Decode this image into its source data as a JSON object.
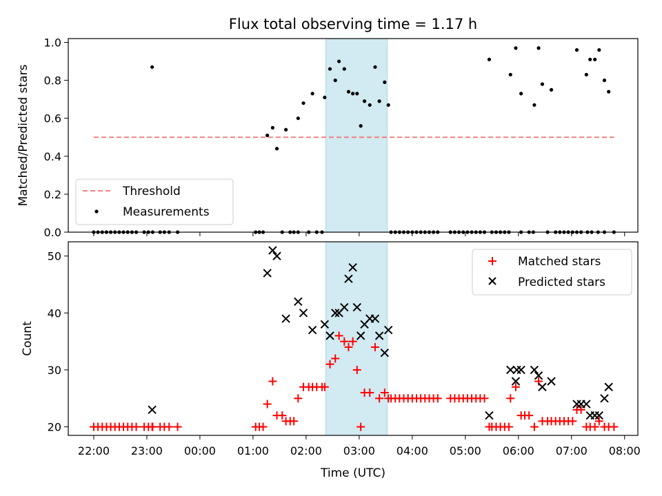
{
  "figure": {
    "title": "Flux total observing time = 1.17 h",
    "xlabel": "Time (UTC)",
    "xticks": [
      {
        "t": -2,
        "label": "22:00"
      },
      {
        "t": -1,
        "label": "23:00"
      },
      {
        "t": 0,
        "label": "00:00"
      },
      {
        "t": 1,
        "label": "01:00"
      },
      {
        "t": 2,
        "label": "02:00"
      },
      {
        "t": 3,
        "label": "03:00"
      },
      {
        "t": 4,
        "label": "04:00"
      },
      {
        "t": 5,
        "label": "05:00"
      },
      {
        "t": 6,
        "label": "06:00"
      },
      {
        "t": 7,
        "label": "07:00"
      },
      {
        "t": 8,
        "label": "08:00"
      }
    ],
    "xlim": [
      -2.48,
      8.25
    ],
    "highlight_span": [
      2.37,
      3.53
    ],
    "colors": {
      "threshold": "#f08080",
      "measurement": "#000000",
      "matched": "#ff0000",
      "predicted": "#000000",
      "span": "#add8e6"
    }
  },
  "chart_data": [
    {
      "type": "scatter",
      "ylabel": "Matched/Predicted stars",
      "ylim": [
        0,
        1.02
      ],
      "yticks": [
        {
          "v": 0,
          "label": "0.0"
        },
        {
          "v": 0.2,
          "label": "0.2"
        },
        {
          "v": 0.4,
          "label": "0.4"
        },
        {
          "v": 0.6,
          "label": "0.6"
        },
        {
          "v": 0.8,
          "label": "0.8"
        },
        {
          "v": 1.0,
          "label": "1.0"
        }
      ],
      "legend_position": "lower-left",
      "threshold": {
        "name": "Threshold",
        "value": 0.5,
        "x_range": [
          -2.0,
          7.8
        ]
      },
      "measurements": {
        "name": "Measurements",
        "points": [
          [
            -2.0,
            0
          ],
          [
            -1.92,
            0
          ],
          [
            -1.84,
            0
          ],
          [
            -1.76,
            0
          ],
          [
            -1.68,
            0
          ],
          [
            -1.6,
            0
          ],
          [
            -1.52,
            0
          ],
          [
            -1.44,
            0
          ],
          [
            -1.36,
            0
          ],
          [
            -1.28,
            0
          ],
          [
            -1.2,
            0
          ],
          [
            -1.05,
            0
          ],
          [
            -0.97,
            0
          ],
          [
            -0.89,
            0
          ],
          [
            -0.75,
            0
          ],
          [
            -0.67,
            0
          ],
          [
            -0.58,
            0
          ],
          [
            -0.42,
            0
          ],
          [
            -0.9,
            0.87
          ],
          [
            1.05,
            0
          ],
          [
            1.12,
            0
          ],
          [
            1.19,
            0
          ],
          [
            1.55,
            0
          ],
          [
            1.7,
            0
          ],
          [
            1.77,
            0
          ],
          [
            1.85,
            0
          ],
          [
            2.05,
            0
          ],
          [
            2.2,
            0
          ],
          [
            2.3,
            0
          ],
          [
            1.27,
            0.51
          ],
          [
            1.37,
            0.55
          ],
          [
            1.45,
            0.44
          ],
          [
            1.62,
            0.54
          ],
          [
            1.85,
            0.6
          ],
          [
            1.95,
            0.68
          ],
          [
            2.12,
            0.73
          ],
          [
            2.35,
            0.71
          ],
          [
            2.45,
            0.86
          ],
          [
            2.55,
            0.8
          ],
          [
            2.62,
            0.9
          ],
          [
            2.72,
            0.86
          ],
          [
            2.8,
            0.74
          ],
          [
            2.88,
            0.73
          ],
          [
            2.96,
            0.73
          ],
          [
            3.03,
            0.56
          ],
          [
            3.1,
            0.69
          ],
          [
            3.2,
            0.67
          ],
          [
            3.3,
            0.87
          ],
          [
            3.38,
            0.69
          ],
          [
            3.48,
            0.79
          ],
          [
            3.55,
            0.67
          ],
          [
            3.6,
            0
          ],
          [
            3.68,
            0
          ],
          [
            3.76,
            0
          ],
          [
            3.84,
            0
          ],
          [
            3.92,
            0
          ],
          [
            4.0,
            0
          ],
          [
            4.08,
            0
          ],
          [
            4.16,
            0
          ],
          [
            4.24,
            0
          ],
          [
            4.32,
            0
          ],
          [
            4.4,
            0
          ],
          [
            4.48,
            0
          ],
          [
            4.72,
            0
          ],
          [
            4.8,
            0
          ],
          [
            4.88,
            0
          ],
          [
            4.96,
            0
          ],
          [
            5.04,
            0
          ],
          [
            5.12,
            0
          ],
          [
            5.2,
            0
          ],
          [
            5.28,
            0
          ],
          [
            5.36,
            0
          ],
          [
            5.5,
            0
          ],
          [
            5.58,
            0
          ],
          [
            5.66,
            0
          ],
          [
            5.74,
            0
          ],
          [
            5.82,
            0
          ],
          [
            5.45,
            0.91
          ],
          [
            5.85,
            0.83
          ],
          [
            5.95,
            0.97
          ],
          [
            6.05,
            0.73
          ],
          [
            6.3,
            0.67
          ],
          [
            6.38,
            0.97
          ],
          [
            6.45,
            0.78
          ],
          [
            6.62,
            0.75
          ],
          [
            6.05,
            0
          ],
          [
            6.2,
            0
          ],
          [
            6.28,
            0
          ],
          [
            6.55,
            0
          ],
          [
            6.7,
            0
          ],
          [
            6.78,
            0
          ],
          [
            6.86,
            0
          ],
          [
            6.94,
            0
          ],
          [
            7.02,
            0
          ],
          [
            7.1,
            0
          ],
          [
            7.18,
            0
          ],
          [
            7.3,
            0
          ],
          [
            7.38,
            0
          ],
          [
            7.5,
            0
          ],
          [
            7.62,
            0
          ],
          [
            7.8,
            0
          ],
          [
            7.1,
            0.96
          ],
          [
            7.28,
            0.83
          ],
          [
            7.35,
            0.91
          ],
          [
            7.44,
            0.91
          ],
          [
            7.52,
            0.96
          ],
          [
            7.62,
            0.8
          ],
          [
            7.7,
            0.74
          ]
        ]
      }
    },
    {
      "type": "scatter",
      "ylabel": "Count",
      "ylim": [
        18.5,
        52.5
      ],
      "yticks": [
        {
          "v": 20,
          "label": "20"
        },
        {
          "v": 30,
          "label": "30"
        },
        {
          "v": 40,
          "label": "40"
        },
        {
          "v": 50,
          "label": "50"
        }
      ],
      "legend_position": "upper-right",
      "series": [
        {
          "name": "Matched stars",
          "marker": "plus",
          "points": [
            [
              -2.0,
              20
            ],
            [
              -1.92,
              20
            ],
            [
              -1.84,
              20
            ],
            [
              -1.76,
              20
            ],
            [
              -1.68,
              20
            ],
            [
              -1.6,
              20
            ],
            [
              -1.52,
              20
            ],
            [
              -1.44,
              20
            ],
            [
              -1.36,
              20
            ],
            [
              -1.28,
              20
            ],
            [
              -1.2,
              20
            ],
            [
              -1.05,
              20
            ],
            [
              -0.97,
              20
            ],
            [
              -0.89,
              20
            ],
            [
              -0.75,
              20
            ],
            [
              -0.67,
              20
            ],
            [
              -0.58,
              20
            ],
            [
              -0.42,
              20
            ],
            [
              -0.9,
              20
            ],
            [
              1.05,
              20
            ],
            [
              1.12,
              20
            ],
            [
              1.19,
              20
            ],
            [
              1.27,
              24
            ],
            [
              1.37,
              28
            ],
            [
              1.45,
              22
            ],
            [
              1.55,
              22
            ],
            [
              1.62,
              21
            ],
            [
              1.7,
              21
            ],
            [
              1.77,
              21
            ],
            [
              1.85,
              25
            ],
            [
              1.95,
              27
            ],
            [
              2.05,
              27
            ],
            [
              2.12,
              27
            ],
            [
              2.2,
              27
            ],
            [
              2.3,
              27
            ],
            [
              2.35,
              27
            ],
            [
              2.45,
              31
            ],
            [
              2.55,
              32
            ],
            [
              2.62,
              36
            ],
            [
              2.72,
              35
            ],
            [
              2.8,
              34
            ],
            [
              2.88,
              35
            ],
            [
              2.96,
              30
            ],
            [
              3.03,
              20
            ],
            [
              3.1,
              26
            ],
            [
              3.2,
              26
            ],
            [
              3.3,
              34
            ],
            [
              3.38,
              25
            ],
            [
              3.48,
              26
            ],
            [
              3.55,
              25
            ],
            [
              3.6,
              25
            ],
            [
              3.68,
              25
            ],
            [
              3.76,
              25
            ],
            [
              3.84,
              25
            ],
            [
              3.92,
              25
            ],
            [
              4.0,
              25
            ],
            [
              4.08,
              25
            ],
            [
              4.16,
              25
            ],
            [
              4.24,
              25
            ],
            [
              4.32,
              25
            ],
            [
              4.4,
              25
            ],
            [
              4.48,
              25
            ],
            [
              4.72,
              25
            ],
            [
              4.8,
              25
            ],
            [
              4.88,
              25
            ],
            [
              4.96,
              25
            ],
            [
              5.04,
              25
            ],
            [
              5.12,
              25
            ],
            [
              5.2,
              25
            ],
            [
              5.28,
              25
            ],
            [
              5.36,
              25
            ],
            [
              5.45,
              20
            ],
            [
              5.5,
              20
            ],
            [
              5.58,
              20
            ],
            [
              5.66,
              20
            ],
            [
              5.74,
              20
            ],
            [
              5.82,
              20
            ],
            [
              5.85,
              25
            ],
            [
              5.95,
              27
            ],
            [
              6.05,
              22
            ],
            [
              6.12,
              22
            ],
            [
              6.2,
              22
            ],
            [
              6.3,
              20
            ],
            [
              6.38,
              28
            ],
            [
              6.45,
              21
            ],
            [
              6.55,
              21
            ],
            [
              6.62,
              21
            ],
            [
              6.7,
              21
            ],
            [
              6.78,
              21
            ],
            [
              6.86,
              21
            ],
            [
              6.94,
              21
            ],
            [
              7.02,
              21
            ],
            [
              7.1,
              23
            ],
            [
              7.18,
              23
            ],
            [
              7.28,
              20
            ],
            [
              7.35,
              20
            ],
            [
              7.44,
              20
            ],
            [
              7.52,
              21
            ],
            [
              7.62,
              20
            ],
            [
              7.7,
              20
            ],
            [
              7.8,
              20
            ]
          ]
        },
        {
          "name": "Predicted stars",
          "marker": "x",
          "points": [
            [
              -0.9,
              23
            ],
            [
              1.27,
              47
            ],
            [
              1.37,
              51
            ],
            [
              1.45,
              50
            ],
            [
              1.62,
              39
            ],
            [
              1.85,
              42
            ],
            [
              1.95,
              40
            ],
            [
              2.12,
              37
            ],
            [
              2.35,
              38
            ],
            [
              2.45,
              36
            ],
            [
              2.55,
              40
            ],
            [
              2.62,
              40
            ],
            [
              2.72,
              41
            ],
            [
              2.8,
              46
            ],
            [
              2.88,
              48
            ],
            [
              2.96,
              41
            ],
            [
              3.03,
              36
            ],
            [
              3.1,
              38
            ],
            [
              3.2,
              39
            ],
            [
              3.3,
              39
            ],
            [
              3.38,
              36
            ],
            [
              3.48,
              33
            ],
            [
              3.55,
              37
            ],
            [
              5.45,
              22
            ],
            [
              5.85,
              30
            ],
            [
              5.95,
              28
            ],
            [
              5.97,
              30
            ],
            [
              6.05,
              30
            ],
            [
              6.3,
              30
            ],
            [
              6.38,
              29
            ],
            [
              6.45,
              27
            ],
            [
              6.62,
              28
            ],
            [
              7.1,
              24
            ],
            [
              7.18,
              24
            ],
            [
              7.28,
              24
            ],
            [
              7.35,
              22
            ],
            [
              7.44,
              22
            ],
            [
              7.52,
              22
            ],
            [
              7.62,
              25
            ],
            [
              7.7,
              27
            ]
          ]
        }
      ]
    }
  ]
}
